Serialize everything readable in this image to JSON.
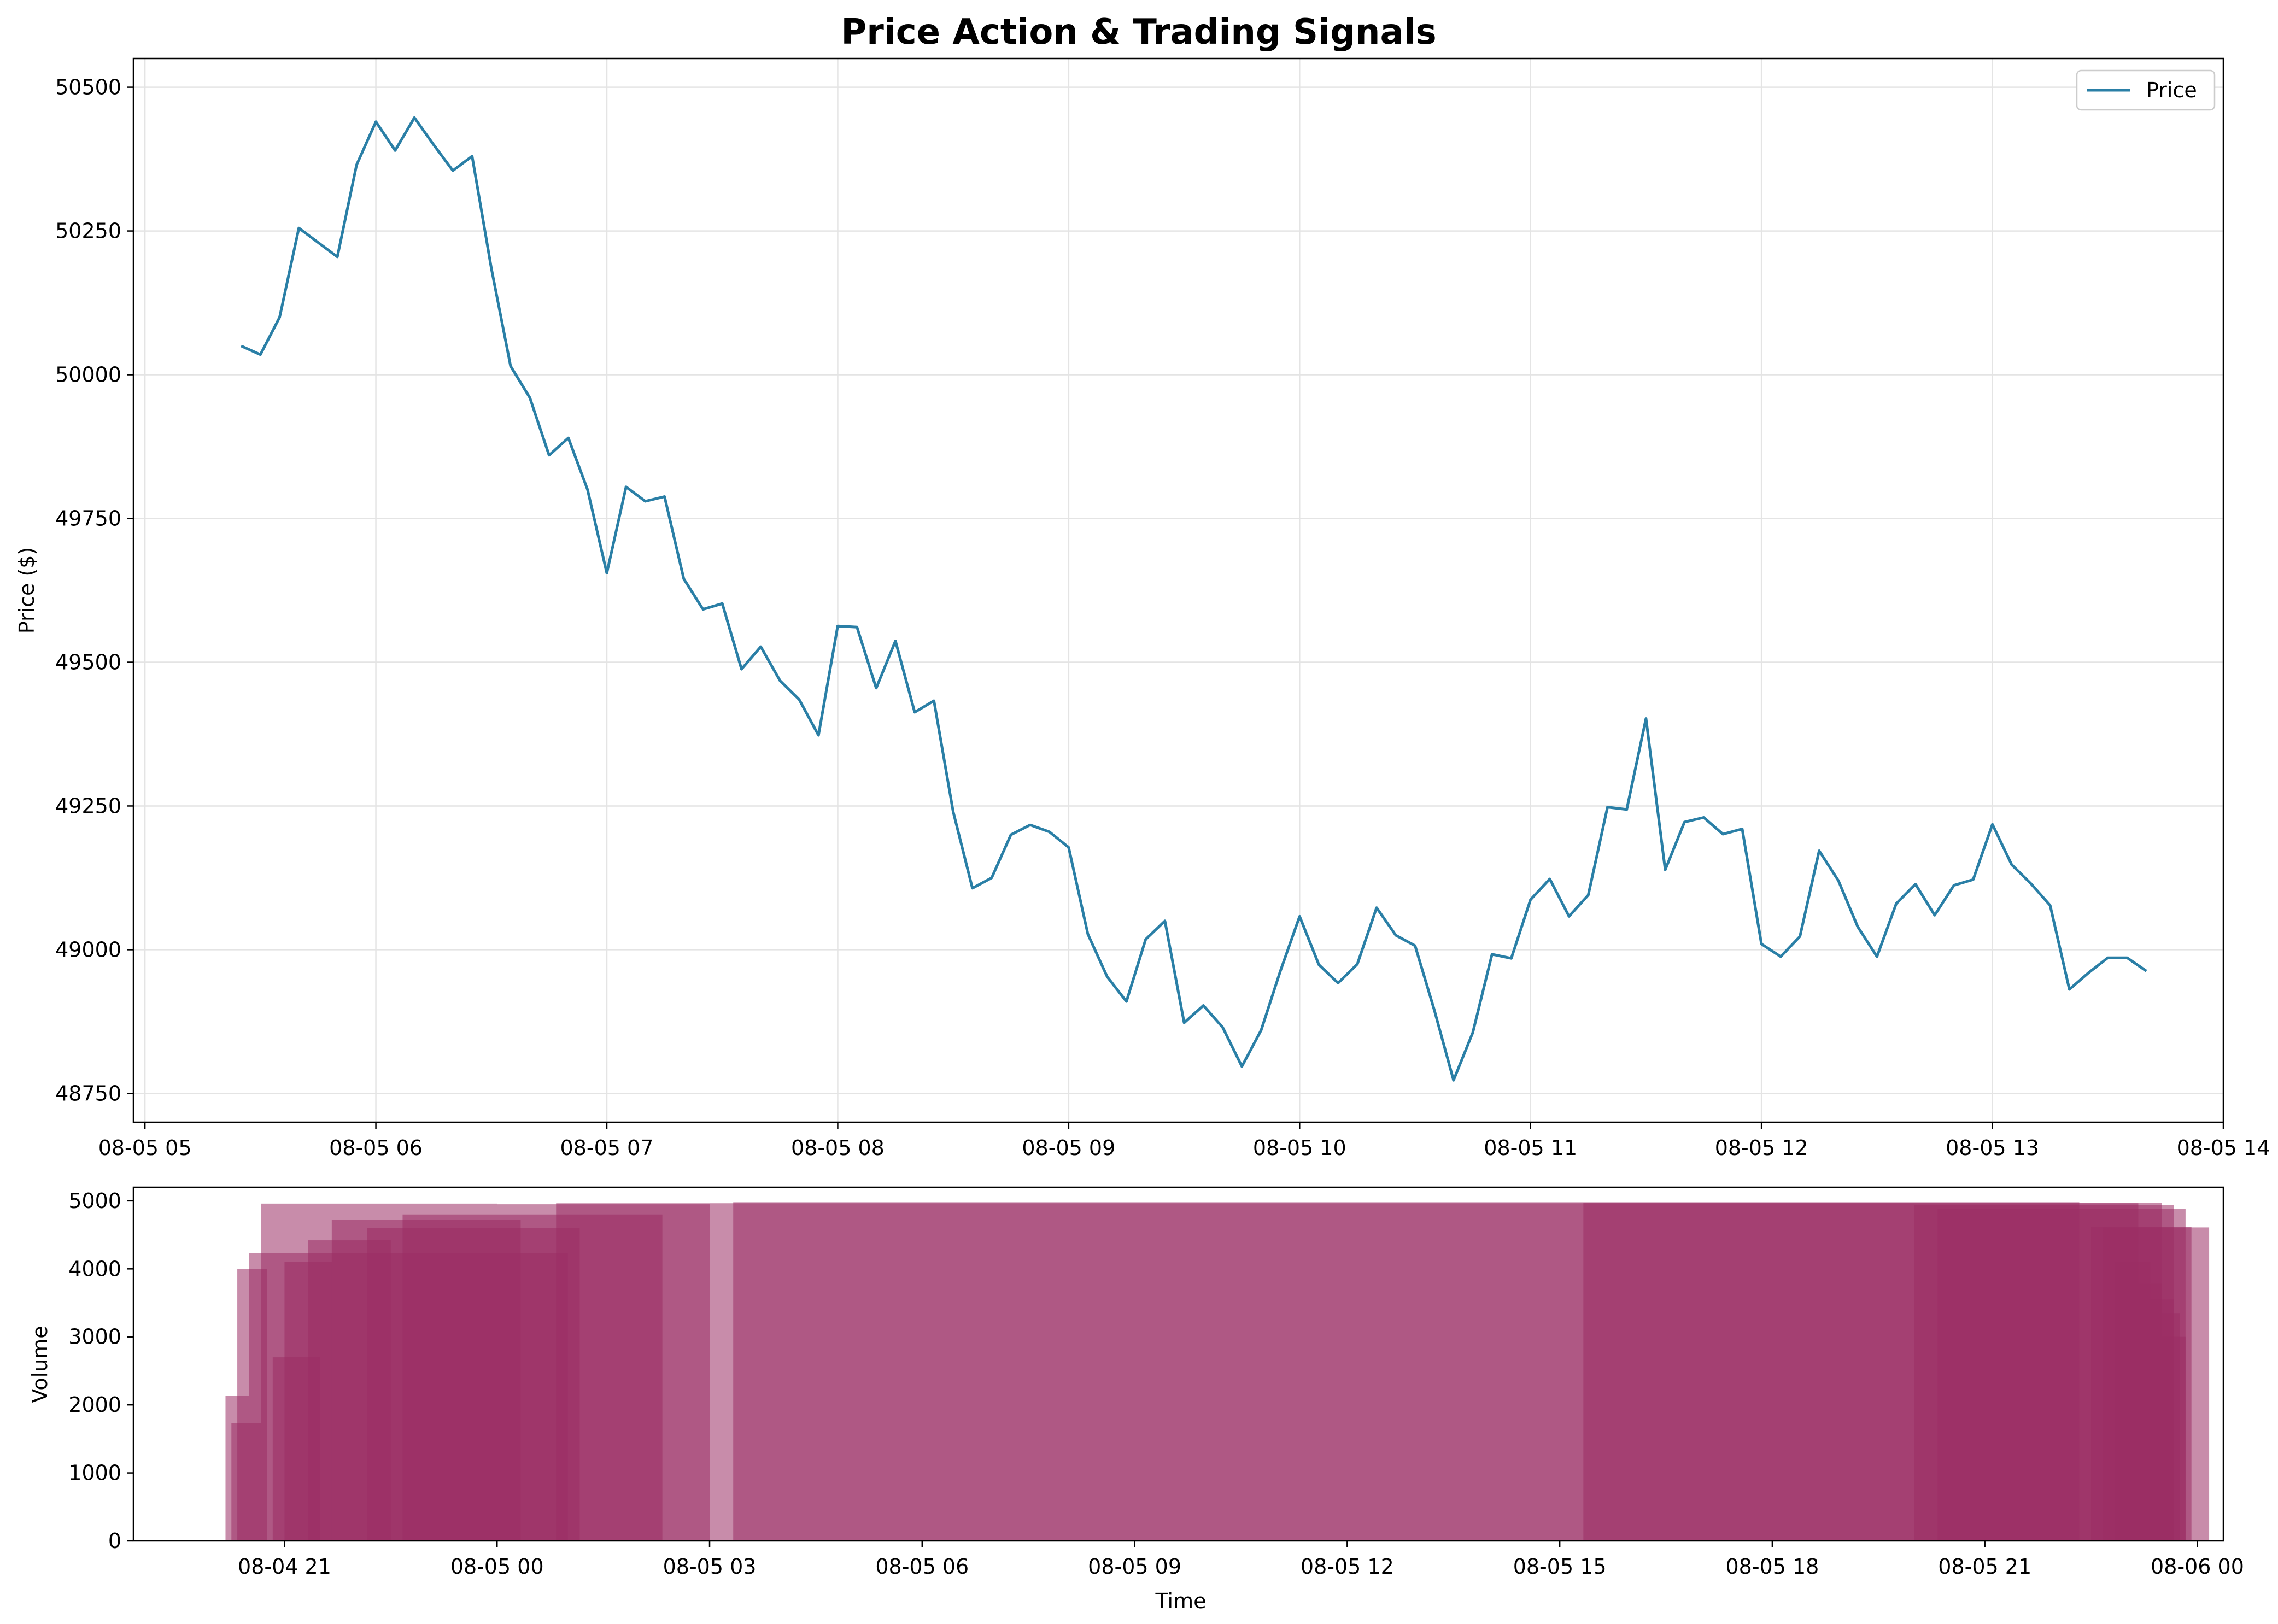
{
  "chart_data": [
    {
      "type": "line",
      "title": "Price Action & Trading Signals",
      "xlabel": "",
      "ylabel": "Price ($)",
      "ylim": [
        48700,
        50550
      ],
      "xlim": [
        "08-05 04:57",
        "08-05 14:00"
      ],
      "grid": true,
      "legend_position": "top-right",
      "x_tick_labels": [
        "08-05 05",
        "08-05 06",
        "08-05 07",
        "08-05 08",
        "08-05 09",
        "08-05 10",
        "08-05 11",
        "08-05 12",
        "08-05 13",
        "08-05 14"
      ],
      "y_tick_labels": [
        "48750",
        "49000",
        "49250",
        "49500",
        "49750",
        "50000",
        "50250",
        "50500"
      ],
      "series": [
        {
          "name": "Price",
          "color": "#2a7fa6",
          "x_start": "08-05 05:25",
          "x_step_minutes": 5,
          "values": [
            50050,
            50035,
            50100,
            50255,
            50230,
            50205,
            50365,
            50440,
            50390,
            50447,
            50400,
            50355,
            50380,
            50185,
            50015,
            49960,
            49860,
            49890,
            49800,
            49655,
            49805,
            49780,
            49788,
            49645,
            49592,
            49602,
            49488,
            49527,
            49468,
            49435,
            49373,
            49563,
            49561,
            49455,
            49537,
            49413,
            49433,
            49240,
            49107,
            49125,
            49200,
            49217,
            49205,
            49178,
            49027,
            48953,
            48910,
            49018,
            49050,
            48873,
            48903,
            48865,
            48797,
            48860,
            48963,
            49058,
            48974,
            48942,
            48975,
            49073,
            49025,
            49007,
            48895,
            48773,
            48856,
            48992,
            48985,
            49087,
            49123,
            49058,
            49095,
            49248,
            49244,
            49402,
            49139,
            49222,
            49230,
            49201,
            49210,
            49010,
            48988,
            49023,
            49172,
            49120,
            49040,
            48988,
            49080,
            49114,
            49060,
            49112,
            49122,
            49218,
            49148,
            49115,
            49077,
            48931,
            48960,
            48986,
            48986,
            48963
          ]
        }
      ]
    },
    {
      "type": "bar",
      "title": "",
      "xlabel": "Time",
      "ylabel": "Volume",
      "ylim": [
        0,
        5200
      ],
      "xlim": [
        "08-04 18:52",
        "08-06 00:22"
      ],
      "grid": false,
      "x_tick_labels": [
        "08-04 21",
        "08-05 00",
        "08-05 03",
        "08-05 06",
        "08-05 09",
        "08-05 12",
        "08-05 15",
        "08-05 18",
        "08-05 21",
        "08-06 00"
      ],
      "y_tick_labels": [
        "0",
        "1000",
        "2000",
        "3000",
        "4000",
        "5000"
      ],
      "series": [
        {
          "name": "Volume",
          "color": "#9b2d64",
          "bars": [
            {
              "start": "08-04 20:10",
              "end": "08-04 20:30",
              "value": 2130
            },
            {
              "start": "08-04 20:15",
              "end": "08-04 20:40",
              "value": 1730
            },
            {
              "start": "08-04 20:20",
              "end": "08-04 20:45",
              "value": 4000
            },
            {
              "start": "08-04 20:30",
              "end": "08-05 01:00",
              "value": 4230
            },
            {
              "start": "08-04 20:40",
              "end": "08-05 00:00",
              "value": 4960
            },
            {
              "start": "08-04 20:50",
              "end": "08-04 21:30",
              "value": 2700
            },
            {
              "start": "08-04 21:00",
              "end": "08-04 21:40",
              "value": 4100
            },
            {
              "start": "08-04 21:20",
              "end": "08-04 22:30",
              "value": 4420
            },
            {
              "start": "08-04 21:40",
              "end": "08-05 00:20",
              "value": 4720
            },
            {
              "start": "08-04 22:10",
              "end": "08-05 01:10",
              "value": 4600
            },
            {
              "start": "08-04 22:40",
              "end": "08-05 02:20",
              "value": 4800
            },
            {
              "start": "08-05 00:00",
              "end": "08-05 03:00",
              "value": 4950
            },
            {
              "start": "08-05 00:50",
              "end": "08-05 23:10",
              "value": 4965
            },
            {
              "start": "08-05 03:20",
              "end": "08-05 22:20",
              "value": 4980
            },
            {
              "start": "08-05 15:20",
              "end": "08-05 23:30",
              "value": 4970
            },
            {
              "start": "08-05 20:00",
              "end": "08-05 23:40",
              "value": 4940
            },
            {
              "start": "08-05 20:20",
              "end": "08-05 23:50",
              "value": 4880
            },
            {
              "start": "08-05 22:30",
              "end": "08-05 23:55",
              "value": 4620
            },
            {
              "start": "08-05 22:50",
              "end": "08-05 23:20",
              "value": 4100
            },
            {
              "start": "08-05 23:10",
              "end": "08-05 23:30",
              "value": 3780
            },
            {
              "start": "08-05 23:20",
              "end": "08-05 23:40",
              "value": 3550
            },
            {
              "start": "08-05 23:30",
              "end": "08-05 23:45",
              "value": 3350
            },
            {
              "start": "08-05 22:40",
              "end": "08-06 00:10",
              "value": 4610
            },
            {
              "start": "08-05 23:30",
              "end": "08-05 23:50",
              "value": 3000
            }
          ]
        }
      ]
    }
  ]
}
